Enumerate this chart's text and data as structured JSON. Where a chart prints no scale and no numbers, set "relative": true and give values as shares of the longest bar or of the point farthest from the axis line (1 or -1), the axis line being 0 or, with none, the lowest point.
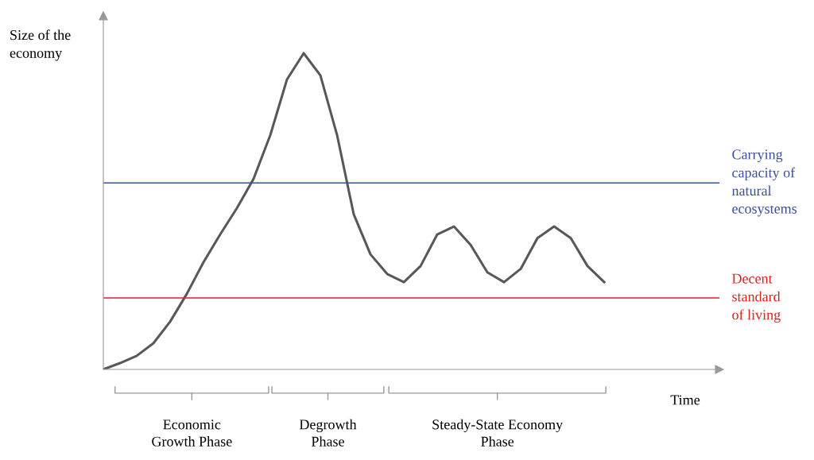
{
  "chart_data": {
    "type": "line",
    "relative": true,
    "ylabel": "Size of the\neconomy",
    "xlabel": "Time",
    "categories": [
      null,
      null,
      null,
      null,
      null,
      null,
      null,
      null,
      null,
      null,
      null,
      null,
      null,
      null,
      null,
      null,
      null,
      null,
      null,
      null,
      null,
      null,
      null,
      null,
      null,
      null,
      null,
      null,
      null,
      null,
      null
    ],
    "series": [
      {
        "color": "#585858",
        "values": [
          0,
          0.02,
          0.043,
          0.083,
          0.151,
          0.239,
          0.339,
          0.427,
          0.51,
          0.603,
          0.741,
          0.917,
          1.0,
          0.93,
          0.741,
          0.49,
          0.364,
          0.302,
          0.276,
          0.327,
          0.427,
          0.452,
          0.394,
          0.307,
          0.276,
          0.318,
          0.415,
          0.452,
          0.415,
          0.327,
          0.276
        ]
      }
    ],
    "ref_lines": [
      {
        "axis": "y",
        "value": 0.59,
        "label": "Carrying\ncapacity of\nnatural\necosystems",
        "color": "#3b4fa0"
      },
      {
        "axis": "y",
        "value": 0.226,
        "label": "Decent\nstandard\nof living",
        "color": "#e0201b"
      }
    ],
    "annotations": [
      "Economic\nGrowth Phase",
      "Degrowth\nPhase",
      "Steady-State Economy\nPhase"
    ],
    "grid": false,
    "legend": false,
    "marker": "none",
    "line_style": "solid"
  }
}
